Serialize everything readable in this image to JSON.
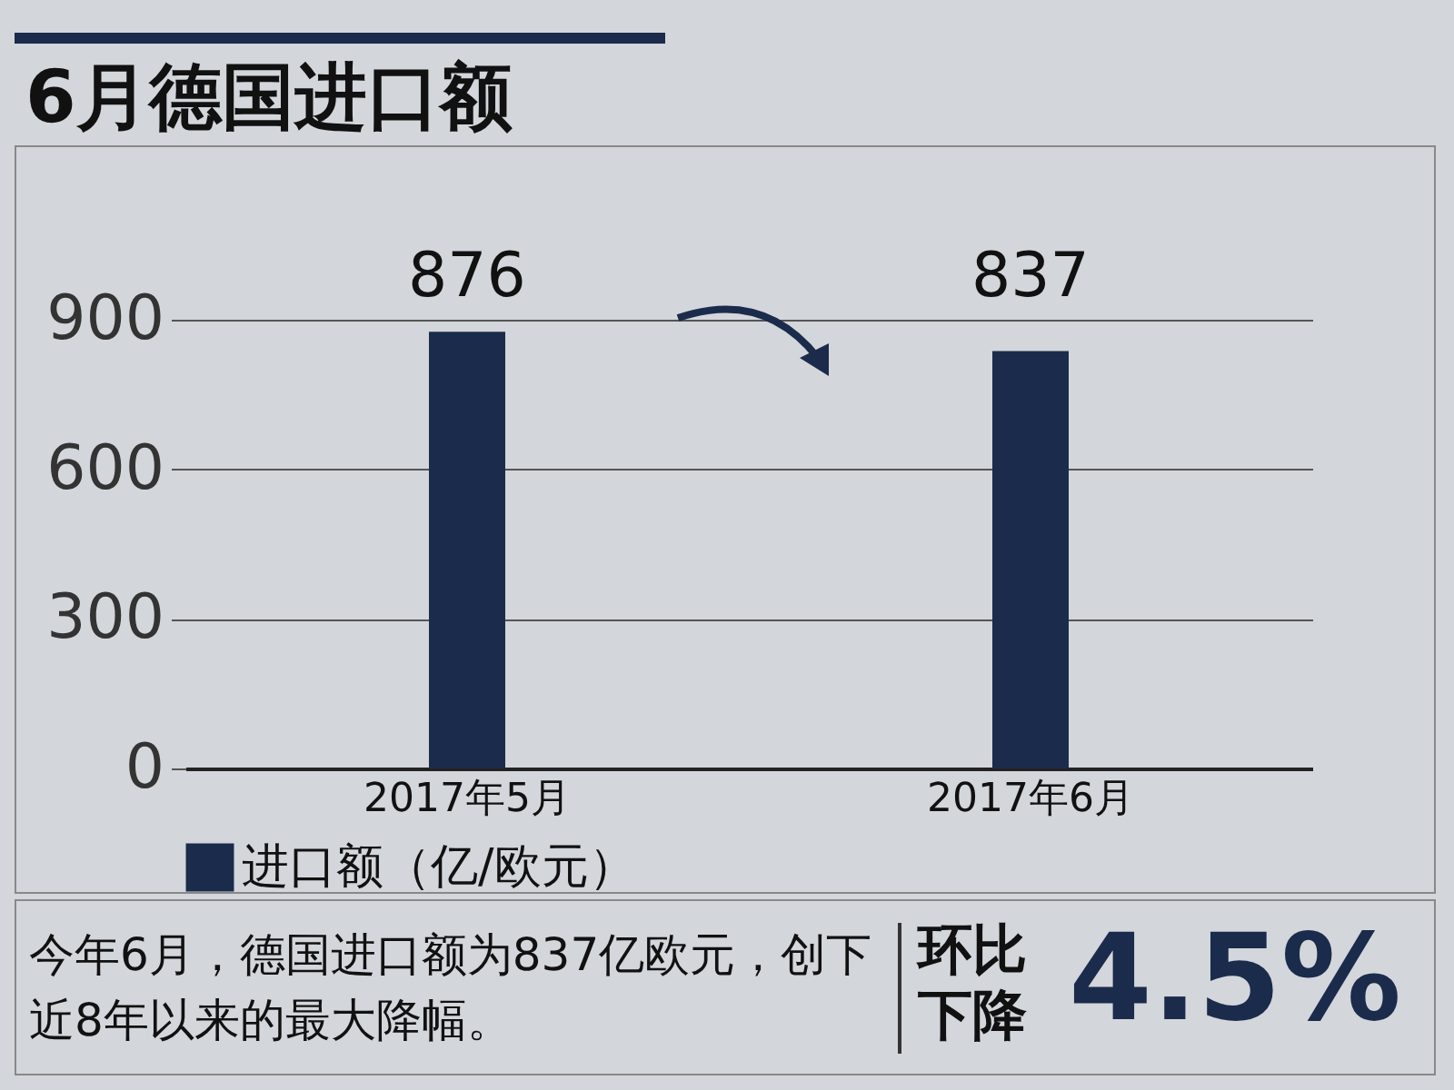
{
  "chart_data": {
    "type": "bar",
    "title": "6月德国进口额",
    "categories": [
      "2017年5月",
      "2017年6月"
    ],
    "series": [
      {
        "name": "进口额（亿/欧元）",
        "color": "#1b2b4b",
        "values": [
          876,
          837
        ]
      }
    ],
    "ylim": [
      0,
      900
    ],
    "yticks": [
      0,
      300,
      600,
      900
    ],
    "grid": "y",
    "legend": "bottom",
    "data_labels": true,
    "annotations": [
      "今年6月，德国进口额为837亿欧元，创下近8年以来的最大降幅。",
      "环比下降",
      "4.5%"
    ]
  }
}
